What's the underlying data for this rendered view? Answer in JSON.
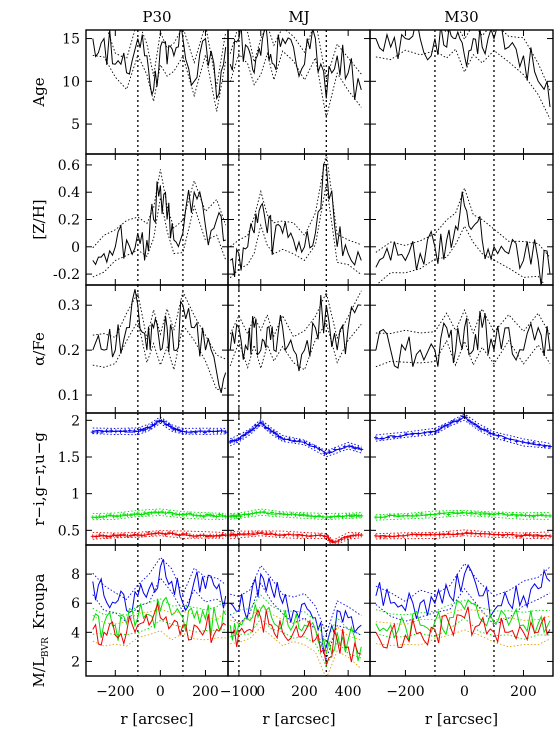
{
  "chart_data": {
    "type": "line",
    "columns": [
      "P30",
      "MJ",
      "M30"
    ],
    "xlabel": "r [arcsec]",
    "x_axes": [
      {
        "range": [
          -330,
          300
        ],
        "ticks": [
          -200,
          0,
          200
        ],
        "vlines": [
          -100,
          100
        ]
      },
      {
        "range": [
          -150,
          500
        ],
        "ticks": [
          -100,
          0,
          200,
          400
        ],
        "vlines": [
          -100,
          300
        ]
      },
      {
        "range": [
          -320,
          300
        ],
        "ticks": [
          -200,
          0,
          200
        ],
        "vlines": [
          -100,
          100
        ]
      }
    ],
    "rows": [
      {
        "key": "age",
        "ylabel": "Age",
        "yrange": [
          1.5,
          16
        ],
        "yticks": [
          5,
          10,
          15
        ],
        "ytick_labels": [
          "5",
          "10",
          "15"
        ]
      },
      {
        "key": "zh",
        "ylabel": "[Z/H]",
        "yrange": [
          -0.28,
          0.68
        ],
        "yticks": [
          -0.2,
          0,
          0.2,
          0.4,
          0.6
        ],
        "ytick_labels": [
          "-0.2",
          "0",
          "0.2",
          "0.4",
          "0.6"
        ]
      },
      {
        "key": "afe",
        "ylabel": "α/Fe",
        "yrange": [
          0.06,
          0.345
        ],
        "yticks": [
          0.1,
          0.2,
          0.3
        ],
        "ytick_labels": [
          "0.1",
          "0.2",
          "0.3"
        ]
      },
      {
        "key": "colors",
        "ylabel": "r−i,g−r,u−g",
        "yrange": [
          0.3,
          2.1
        ],
        "yticks": [
          0.5,
          1,
          1.5,
          2
        ],
        "ytick_labels": [
          "0.5",
          "1",
          "1.5",
          "2"
        ]
      },
      {
        "key": "ml",
        "ylabel": "M/L",
        "ylabel_sub": "BVR",
        "ylabel_extra": "Kroupa",
        "yrange": [
          1,
          10
        ],
        "yticks": [
          2,
          4,
          6,
          8
        ],
        "ytick_labels": [
          "2",
          "4",
          "6",
          "8"
        ]
      }
    ],
    "series_colors": {
      "main": "#000000",
      "ug": "#0000ee",
      "gr": "#00e000",
      "ri": "#ee0000",
      "ml_mid": "#e8a000"
    },
    "profiles": {
      "age": [
        {
          "x": [
            -300,
            -250,
            -200,
            -150,
            -100,
            -60,
            -30,
            0,
            30,
            60,
            100,
            150,
            200,
            250,
            290
          ],
          "y": [
            15,
            15,
            12,
            11,
            15,
            13,
            9,
            14,
            12,
            13,
            15,
            10,
            15,
            8,
            14
          ]
        },
        {
          "x": [
            -140,
            -100,
            -60,
            -30,
            0,
            30,
            60,
            100,
            150,
            200,
            250,
            300,
            350,
            400,
            460
          ],
          "y": [
            12,
            15,
            14,
            11,
            13,
            15,
            12,
            15,
            14,
            12,
            15,
            8,
            13,
            11,
            9
          ]
        },
        {
          "x": [
            -300,
            -250,
            -200,
            -150,
            -100,
            -60,
            -30,
            0,
            30,
            60,
            100,
            150,
            200,
            250,
            290
          ],
          "y": [
            15,
            14,
            15,
            15,
            15,
            14,
            15,
            13,
            15,
            14,
            15,
            14,
            13,
            10,
            7
          ]
        }
      ],
      "zh": [
        {
          "x": [
            -300,
            -250,
            -200,
            -150,
            -100,
            -60,
            -30,
            0,
            30,
            60,
            100,
            150,
            200,
            250,
            290
          ],
          "y": [
            -0.1,
            -0.05,
            0.0,
            0.05,
            0.1,
            0.05,
            0.2,
            0.45,
            0.2,
            0.05,
            0.1,
            0.4,
            0.15,
            0.2,
            0.05
          ]
        },
        {
          "x": [
            -140,
            -100,
            -60,
            -30,
            0,
            30,
            60,
            100,
            150,
            200,
            250,
            300,
            350,
            400,
            460
          ],
          "y": [
            -0.1,
            -0.05,
            0.0,
            0.1,
            0.3,
            0.1,
            0.05,
            0.1,
            0.05,
            0.0,
            0.1,
            0.6,
            0.0,
            -0.05,
            -0.1
          ]
        },
        {
          "x": [
            -300,
            -250,
            -200,
            -150,
            -100,
            -60,
            -30,
            0,
            30,
            60,
            100,
            150,
            200,
            250,
            290
          ],
          "y": [
            -0.15,
            -0.1,
            -0.1,
            -0.05,
            0.0,
            0.05,
            0.15,
            0.3,
            0.15,
            0.05,
            0.0,
            -0.05,
            -0.1,
            -0.1,
            -0.2
          ]
        }
      ],
      "afe": [
        {
          "x": [
            -300,
            -250,
            -200,
            -150,
            -100,
            -60,
            -30,
            0,
            30,
            60,
            100,
            150,
            200,
            250,
            290
          ],
          "y": [
            0.2,
            0.2,
            0.2,
            0.25,
            0.3,
            0.2,
            0.25,
            0.2,
            0.25,
            0.2,
            0.3,
            0.25,
            0.2,
            0.15,
            0.15
          ]
        },
        {
          "x": [
            -140,
            -100,
            -60,
            -30,
            0,
            30,
            60,
            100,
            150,
            200,
            250,
            300,
            350,
            400,
            460
          ],
          "y": [
            0.2,
            0.25,
            0.2,
            0.25,
            0.2,
            0.25,
            0.2,
            0.25,
            0.2,
            0.2,
            0.25,
            0.3,
            0.2,
            0.25,
            0.3
          ]
        },
        {
          "x": [
            -300,
            -250,
            -200,
            -150,
            -100,
            -60,
            -30,
            0,
            30,
            60,
            100,
            150,
            200,
            250,
            290
          ],
          "y": [
            0.2,
            0.2,
            0.2,
            0.2,
            0.2,
            0.25,
            0.2,
            0.25,
            0.2,
            0.25,
            0.2,
            0.25,
            0.2,
            0.25,
            0.2
          ]
        }
      ],
      "ug": [
        {
          "x": [
            -300,
            -200,
            -100,
            -50,
            0,
            50,
            100,
            200,
            290
          ],
          "y": [
            1.85,
            1.85,
            1.85,
            1.9,
            2.0,
            1.9,
            1.85,
            1.85,
            1.85
          ]
        },
        {
          "x": [
            -140,
            -100,
            -50,
            0,
            50,
            100,
            200,
            300,
            400,
            460
          ],
          "y": [
            1.7,
            1.75,
            1.85,
            1.97,
            1.85,
            1.75,
            1.7,
            1.55,
            1.65,
            1.6
          ]
        },
        {
          "x": [
            -300,
            -200,
            -100,
            -50,
            0,
            50,
            100,
            200,
            290
          ],
          "y": [
            1.75,
            1.8,
            1.85,
            1.95,
            2.05,
            1.9,
            1.8,
            1.7,
            1.65
          ]
        }
      ],
      "gr": [
        {
          "x": [
            -300,
            -200,
            -100,
            0,
            100,
            200,
            290
          ],
          "y": [
            0.68,
            0.7,
            0.72,
            0.75,
            0.72,
            0.7,
            0.7
          ]
        },
        {
          "x": [
            -140,
            -100,
            0,
            100,
            200,
            300,
            400,
            460
          ],
          "y": [
            0.7,
            0.7,
            0.75,
            0.72,
            0.7,
            0.68,
            0.7,
            0.7
          ]
        },
        {
          "x": [
            -300,
            -200,
            -100,
            0,
            100,
            200,
            290
          ],
          "y": [
            0.68,
            0.7,
            0.72,
            0.74,
            0.72,
            0.7,
            0.7
          ]
        }
      ],
      "ri": [
        {
          "x": [
            -300,
            -200,
            -100,
            0,
            100,
            200,
            290
          ],
          "y": [
            0.42,
            0.43,
            0.44,
            0.46,
            0.44,
            0.43,
            0.43
          ]
        },
        {
          "x": [
            -140,
            -100,
            0,
            100,
            200,
            300,
            330,
            400,
            460
          ],
          "y": [
            0.43,
            0.44,
            0.46,
            0.44,
            0.43,
            0.42,
            0.33,
            0.42,
            0.43
          ]
        },
        {
          "x": [
            -300,
            -200,
            -100,
            0,
            100,
            200,
            290
          ],
          "y": [
            0.42,
            0.43,
            0.44,
            0.46,
            0.44,
            0.43,
            0.43
          ]
        }
      ],
      "ml_ug": [
        {
          "x": [
            -300,
            -250,
            -200,
            -150,
            -100,
            -50,
            0,
            50,
            100,
            150,
            200,
            250,
            290
          ],
          "y": [
            7.5,
            6.5,
            6.0,
            5.5,
            6.5,
            7.0,
            8.5,
            7.5,
            6.0,
            7.5,
            7.0,
            7.0,
            6.5
          ]
        },
        {
          "x": [
            -140,
            -100,
            -50,
            0,
            50,
            100,
            150,
            200,
            250,
            300,
            350,
            400,
            460
          ],
          "y": [
            6.0,
            5.5,
            6.0,
            8.0,
            7.0,
            6.0,
            5.5,
            6.0,
            5.0,
            3.0,
            5.5,
            5.0,
            4.5
          ]
        },
        {
          "x": [
            -300,
            -250,
            -200,
            -150,
            -100,
            -50,
            0,
            50,
            100,
            150,
            200,
            250,
            290
          ],
          "y": [
            6.5,
            6.0,
            5.5,
            6.0,
            6.0,
            6.5,
            8.0,
            6.5,
            5.5,
            6.0,
            6.5,
            7.0,
            7.5
          ]
        }
      ],
      "ml_gr": [
        {
          "x": [
            -300,
            -250,
            -200,
            -150,
            -100,
            -50,
            0,
            50,
            100,
            150,
            200,
            250,
            290
          ],
          "y": [
            4.8,
            4.6,
            4.5,
            4.6,
            5.0,
            5.2,
            5.5,
            5.2,
            5.0,
            5.0,
            4.9,
            4.8,
            5.2
          ]
        },
        {
          "x": [
            -140,
            -100,
            -50,
            0,
            50,
            100,
            150,
            200,
            250,
            300,
            350,
            400,
            460
          ],
          "y": [
            4.5,
            4.6,
            4.8,
            5.6,
            5.0,
            4.6,
            4.5,
            4.5,
            4.2,
            2.5,
            4.0,
            3.5,
            3.0
          ]
        },
        {
          "x": [
            -300,
            -250,
            -200,
            -150,
            -100,
            -50,
            0,
            50,
            100,
            150,
            200,
            250,
            290
          ],
          "y": [
            4.6,
            4.5,
            4.4,
            4.5,
            4.7,
            5.0,
            5.6,
            5.0,
            4.6,
            4.5,
            4.5,
            4.6,
            4.8
          ]
        }
      ],
      "ml_ri": [
        {
          "x": [
            -300,
            -250,
            -200,
            -150,
            -100,
            -50,
            0,
            50,
            100,
            150,
            200,
            250,
            290
          ],
          "y": [
            4.2,
            4.0,
            3.8,
            4.0,
            4.5,
            4.5,
            5.0,
            4.5,
            4.5,
            4.5,
            4.2,
            4.2,
            4.5
          ]
        },
        {
          "x": [
            -140,
            -100,
            -50,
            0,
            50,
            100,
            150,
            200,
            250,
            300,
            350,
            400,
            460
          ],
          "y": [
            4.0,
            4.0,
            4.2,
            5.0,
            4.5,
            4.0,
            4.0,
            4.0,
            3.5,
            1.8,
            3.5,
            3.0,
            2.5
          ]
        },
        {
          "x": [
            -300,
            -250,
            -200,
            -150,
            -100,
            -50,
            0,
            50,
            100,
            150,
            200,
            250,
            290
          ],
          "y": [
            4.0,
            4.0,
            3.8,
            4.0,
            4.2,
            4.5,
            5.0,
            4.5,
            4.0,
            4.0,
            4.0,
            4.0,
            4.2
          ]
        }
      ]
    }
  }
}
